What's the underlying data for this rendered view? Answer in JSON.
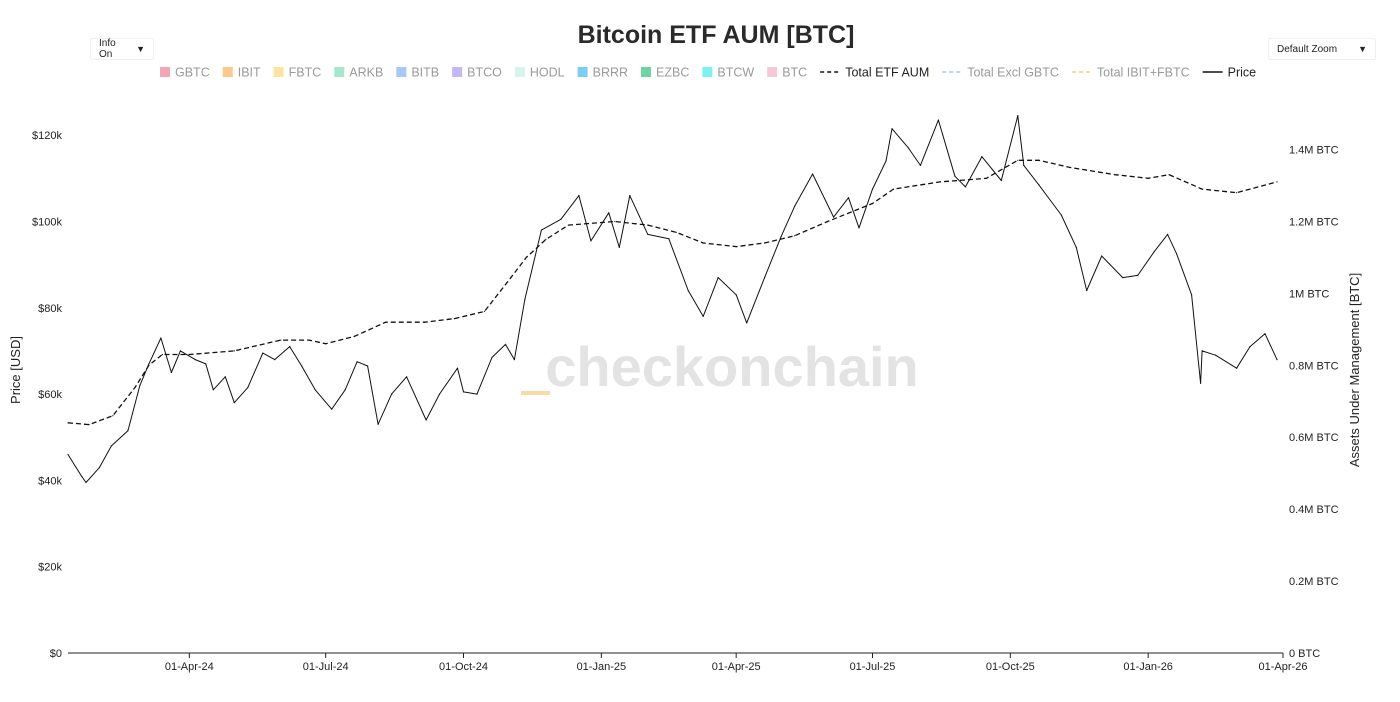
{
  "controls": {
    "info_label": "Info On",
    "zoom_label": "Default Zoom",
    "dropdown_arrow": "▼"
  },
  "watermark": "checkonchain",
  "colors": {
    "price_line": "#111111",
    "aum_line": "#111111",
    "watermark": "#e3e3e3",
    "ibit_fbtc_mark": "#fdd9a8"
  },
  "chart_data": {
    "type": "line",
    "title": "Bitcoin ETF AUM [BTC]",
    "ylabel": "Price [USD]",
    "y2label": "Assets Under Management [BTC]",
    "ylim": [
      0,
      130000
    ],
    "y2lim": [
      0,
      1560000
    ],
    "yticks": [
      "$0",
      "$20k",
      "$40k",
      "$60k",
      "$80k",
      "$100k",
      "$120k"
    ],
    "y2ticks": [
      "0 BTC",
      "0.2M BTC",
      "0.4M BTC",
      "0.6M BTC",
      "0.8M BTC",
      "1M BTC",
      "1.2M BTC",
      "1.4M BTC"
    ],
    "xticks": [
      "01-Apr-24",
      "01-Jul-24",
      "01-Oct-24",
      "01-Jan-25",
      "01-Apr-25",
      "01-Jul-25",
      "01-Oct-25",
      "01-Jan-26",
      "01-Apr-26"
    ],
    "x_range": [
      "2024-01-11",
      "2026-04-01"
    ],
    "legend": [
      {
        "name": "GBTC",
        "color": "#f4a6b4",
        "kind": "box",
        "active": false
      },
      {
        "name": "IBIT",
        "color": "#fbc98c",
        "kind": "box",
        "active": false
      },
      {
        "name": "FBTC",
        "color": "#fde3a0",
        "kind": "box",
        "active": false
      },
      {
        "name": "ARKB",
        "color": "#a8e6cf",
        "kind": "box",
        "active": false
      },
      {
        "name": "BITB",
        "color": "#a8c8f4",
        "kind": "box",
        "active": false
      },
      {
        "name": "BTCO",
        "color": "#c4b8f4",
        "kind": "box",
        "active": false
      },
      {
        "name": "HODL",
        "color": "#d8f3ec",
        "kind": "box",
        "active": false
      },
      {
        "name": "BRRR",
        "color": "#7ccff0",
        "kind": "box",
        "active": false
      },
      {
        "name": "EZBC",
        "color": "#6fd3a8",
        "kind": "box",
        "active": false
      },
      {
        "name": "BTCW",
        "color": "#7ff0f0",
        "kind": "box",
        "active": false
      },
      {
        "name": "BTC",
        "color": "#f8c8d8",
        "kind": "box",
        "active": false
      },
      {
        "name": "Total ETF AUM",
        "color": "#111111",
        "kind": "dash",
        "active": true
      },
      {
        "name": "Total Excl GBTC",
        "color": "#a8c8f4",
        "kind": "dash",
        "active": false
      },
      {
        "name": "Total IBIT+FBTC",
        "color": "#fbc98c",
        "kind": "dash",
        "active": false
      },
      {
        "name": "Price",
        "color": "#111111",
        "kind": "solid",
        "active": true
      }
    ],
    "series": [
      {
        "name": "Price",
        "x": [
          "2024-01-11",
          "2024-01-20",
          "2024-01-23",
          "2024-02-01",
          "2024-02-09",
          "2024-02-20",
          "2024-02-28",
          "2024-03-05",
          "2024-03-13",
          "2024-03-20",
          "2024-03-26",
          "2024-04-05",
          "2024-04-12",
          "2024-04-17",
          "2024-04-25",
          "2024-05-01",
          "2024-05-10",
          "2024-05-20",
          "2024-05-28",
          "2024-06-07",
          "2024-06-15",
          "2024-06-24",
          "2024-07-05",
          "2024-07-14",
          "2024-07-22",
          "2024-07-29",
          "2024-08-05",
          "2024-08-14",
          "2024-08-24",
          "2024-09-06",
          "2024-09-15",
          "2024-09-27",
          "2024-10-01",
          "2024-10-10",
          "2024-10-20",
          "2024-10-29",
          "2024-11-04",
          "2024-11-11",
          "2024-11-22",
          "2024-12-05",
          "2024-12-17",
          "2024-12-25",
          "2025-01-06",
          "2025-01-13",
          "2025-01-20",
          "2025-02-01",
          "2025-02-15",
          "2025-02-28",
          "2025-03-10",
          "2025-03-20",
          "2025-04-01",
          "2025-04-08",
          "2025-04-20",
          "2025-05-01",
          "2025-05-10",
          "2025-05-22",
          "2025-06-05",
          "2025-06-15",
          "2025-06-22",
          "2025-07-01",
          "2025-07-10",
          "2025-07-14",
          "2025-07-25",
          "2025-08-02",
          "2025-08-14",
          "2025-08-25",
          "2025-09-01",
          "2025-09-12",
          "2025-09-25",
          "2025-10-06",
          "2025-10-10",
          "2025-10-20",
          "2025-11-04",
          "2025-11-14",
          "2025-11-21",
          "2025-12-01",
          "2025-12-15",
          "2025-12-25",
          "2026-01-05",
          "2026-01-14",
          "2026-01-20",
          "2026-01-30",
          "2026-02-05",
          "2026-02-06",
          "2026-02-15",
          "2026-03-01",
          "2026-03-10",
          "2026-03-20",
          "2026-03-28"
        ],
        "y": [
          46000,
          41000,
          39500,
          43000,
          48000,
          51500,
          62000,
          67000,
          73000,
          65000,
          70000,
          68000,
          67000,
          61000,
          64000,
          58000,
          61500,
          69500,
          68000,
          71000,
          66500,
          61000,
          56500,
          61000,
          67500,
          66500,
          53000,
          60000,
          64000,
          54000,
          60000,
          66000,
          60500,
          60000,
          68500,
          71500,
          68000,
          82000,
          98000,
          100500,
          106000,
          95500,
          102000,
          94000,
          106000,
          97000,
          96000,
          84000,
          78000,
          87000,
          83000,
          76500,
          87000,
          96500,
          103500,
          111000,
          101000,
          105500,
          98500,
          107500,
          114000,
          121500,
          117000,
          113000,
          123500,
          110500,
          108000,
          115000,
          109500,
          124500,
          113000,
          108500,
          101500,
          94000,
          84000,
          92000,
          87000,
          87500,
          93000,
          97000,
          92500,
          83000,
          62500,
          70000,
          69000,
          66000,
          71000,
          74000,
          68000
        ]
      },
      {
        "name": "Total ETF AUM",
        "x": [
          "2024-01-11",
          "2024-01-25",
          "2024-02-10",
          "2024-02-25",
          "2024-03-05",
          "2024-03-14",
          "2024-04-01",
          "2024-05-01",
          "2024-06-01",
          "2024-06-20",
          "2024-07-01",
          "2024-07-20",
          "2024-08-10",
          "2024-09-05",
          "2024-09-25",
          "2024-10-15",
          "2024-10-30",
          "2024-11-12",
          "2024-11-25",
          "2024-12-10",
          "2025-01-10",
          "2025-02-01",
          "2025-02-20",
          "2025-03-10",
          "2025-04-01",
          "2025-04-20",
          "2025-05-10",
          "2025-06-01",
          "2025-07-01",
          "2025-07-15",
          "2025-08-15",
          "2025-09-15",
          "2025-10-06",
          "2025-10-20",
          "2025-11-10",
          "2025-12-10",
          "2026-01-01",
          "2026-01-15",
          "2026-02-06",
          "2026-03-01",
          "2026-03-28"
        ],
        "y": [
          640000,
          635000,
          660000,
          740000,
          800000,
          830000,
          830000,
          840000,
          870000,
          870000,
          860000,
          880000,
          920000,
          920000,
          930000,
          950000,
          1030000,
          1100000,
          1150000,
          1190000,
          1200000,
          1190000,
          1170000,
          1140000,
          1130000,
          1140000,
          1160000,
          1200000,
          1250000,
          1290000,
          1310000,
          1320000,
          1370000,
          1370000,
          1350000,
          1330000,
          1320000,
          1330000,
          1290000,
          1280000,
          1310000
        ]
      }
    ]
  }
}
